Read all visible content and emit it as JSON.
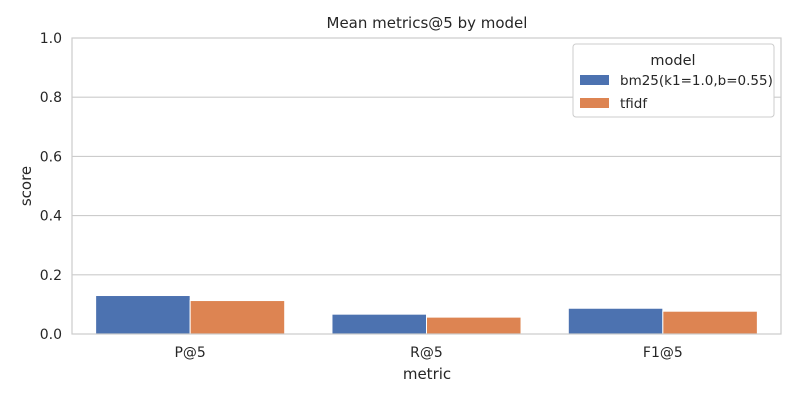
{
  "chart_data": {
    "type": "bar",
    "title": "Mean metrics@5 by model",
    "xlabel": "metric",
    "ylabel": "score",
    "ylim": [
      0,
      1
    ],
    "yticks": [
      "0.0",
      "0.2",
      "0.4",
      "0.6",
      "0.8",
      "1.0"
    ],
    "ytick_values": [
      0,
      0.2,
      0.4,
      0.6,
      0.8,
      1.0
    ],
    "categories": [
      "P@5",
      "R@5",
      "F1@5"
    ],
    "series": [
      {
        "name": "bm25(k1=1.0,b=0.55)",
        "values": [
          0.13,
          0.067,
          0.087
        ],
        "color": "#4c72b0"
      },
      {
        "name": "tfidf",
        "values": [
          0.113,
          0.057,
          0.077
        ],
        "color": "#dd8452"
      }
    ],
    "legend": {
      "title": "model",
      "placement": "top-right"
    },
    "grid": "horizontal"
  }
}
